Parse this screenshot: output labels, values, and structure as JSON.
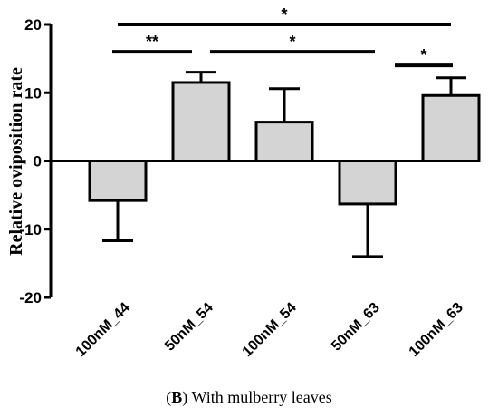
{
  "chart_data": {
    "type": "bar",
    "categories": [
      "100nM_44",
      "50nM_54",
      "100nM_54",
      "50nM_63",
      "100nM_63"
    ],
    "values": [
      -5.8,
      11.5,
      5.7,
      -6.3,
      9.6
    ],
    "errors": [
      5.9,
      1.5,
      4.9,
      7.7,
      2.6
    ],
    "ylabel": "Relative oviposition rate",
    "xlabel": "",
    "ylim": [
      -20,
      20
    ],
    "yticks": [
      -20,
      -10,
      0,
      10,
      20
    ],
    "bar_color": "#d4d4d4",
    "significance": [
      {
        "from": "50nM_54",
        "to": "100nM_44",
        "label": "**",
        "y": 16
      },
      {
        "from": "50nM_54",
        "to": "50nM_63",
        "label": "*",
        "y": 16
      },
      {
        "from": "50nM_63",
        "to": "100nM_63",
        "label": "*",
        "y": 14
      },
      {
        "from": "100nM_44",
        "to": "100nM_63",
        "label": "*",
        "y": 20
      }
    ],
    "caption_bold": "B",
    "caption_open": "(",
    "caption_close": ")",
    "caption_rest": " With mulberry leaves"
  }
}
